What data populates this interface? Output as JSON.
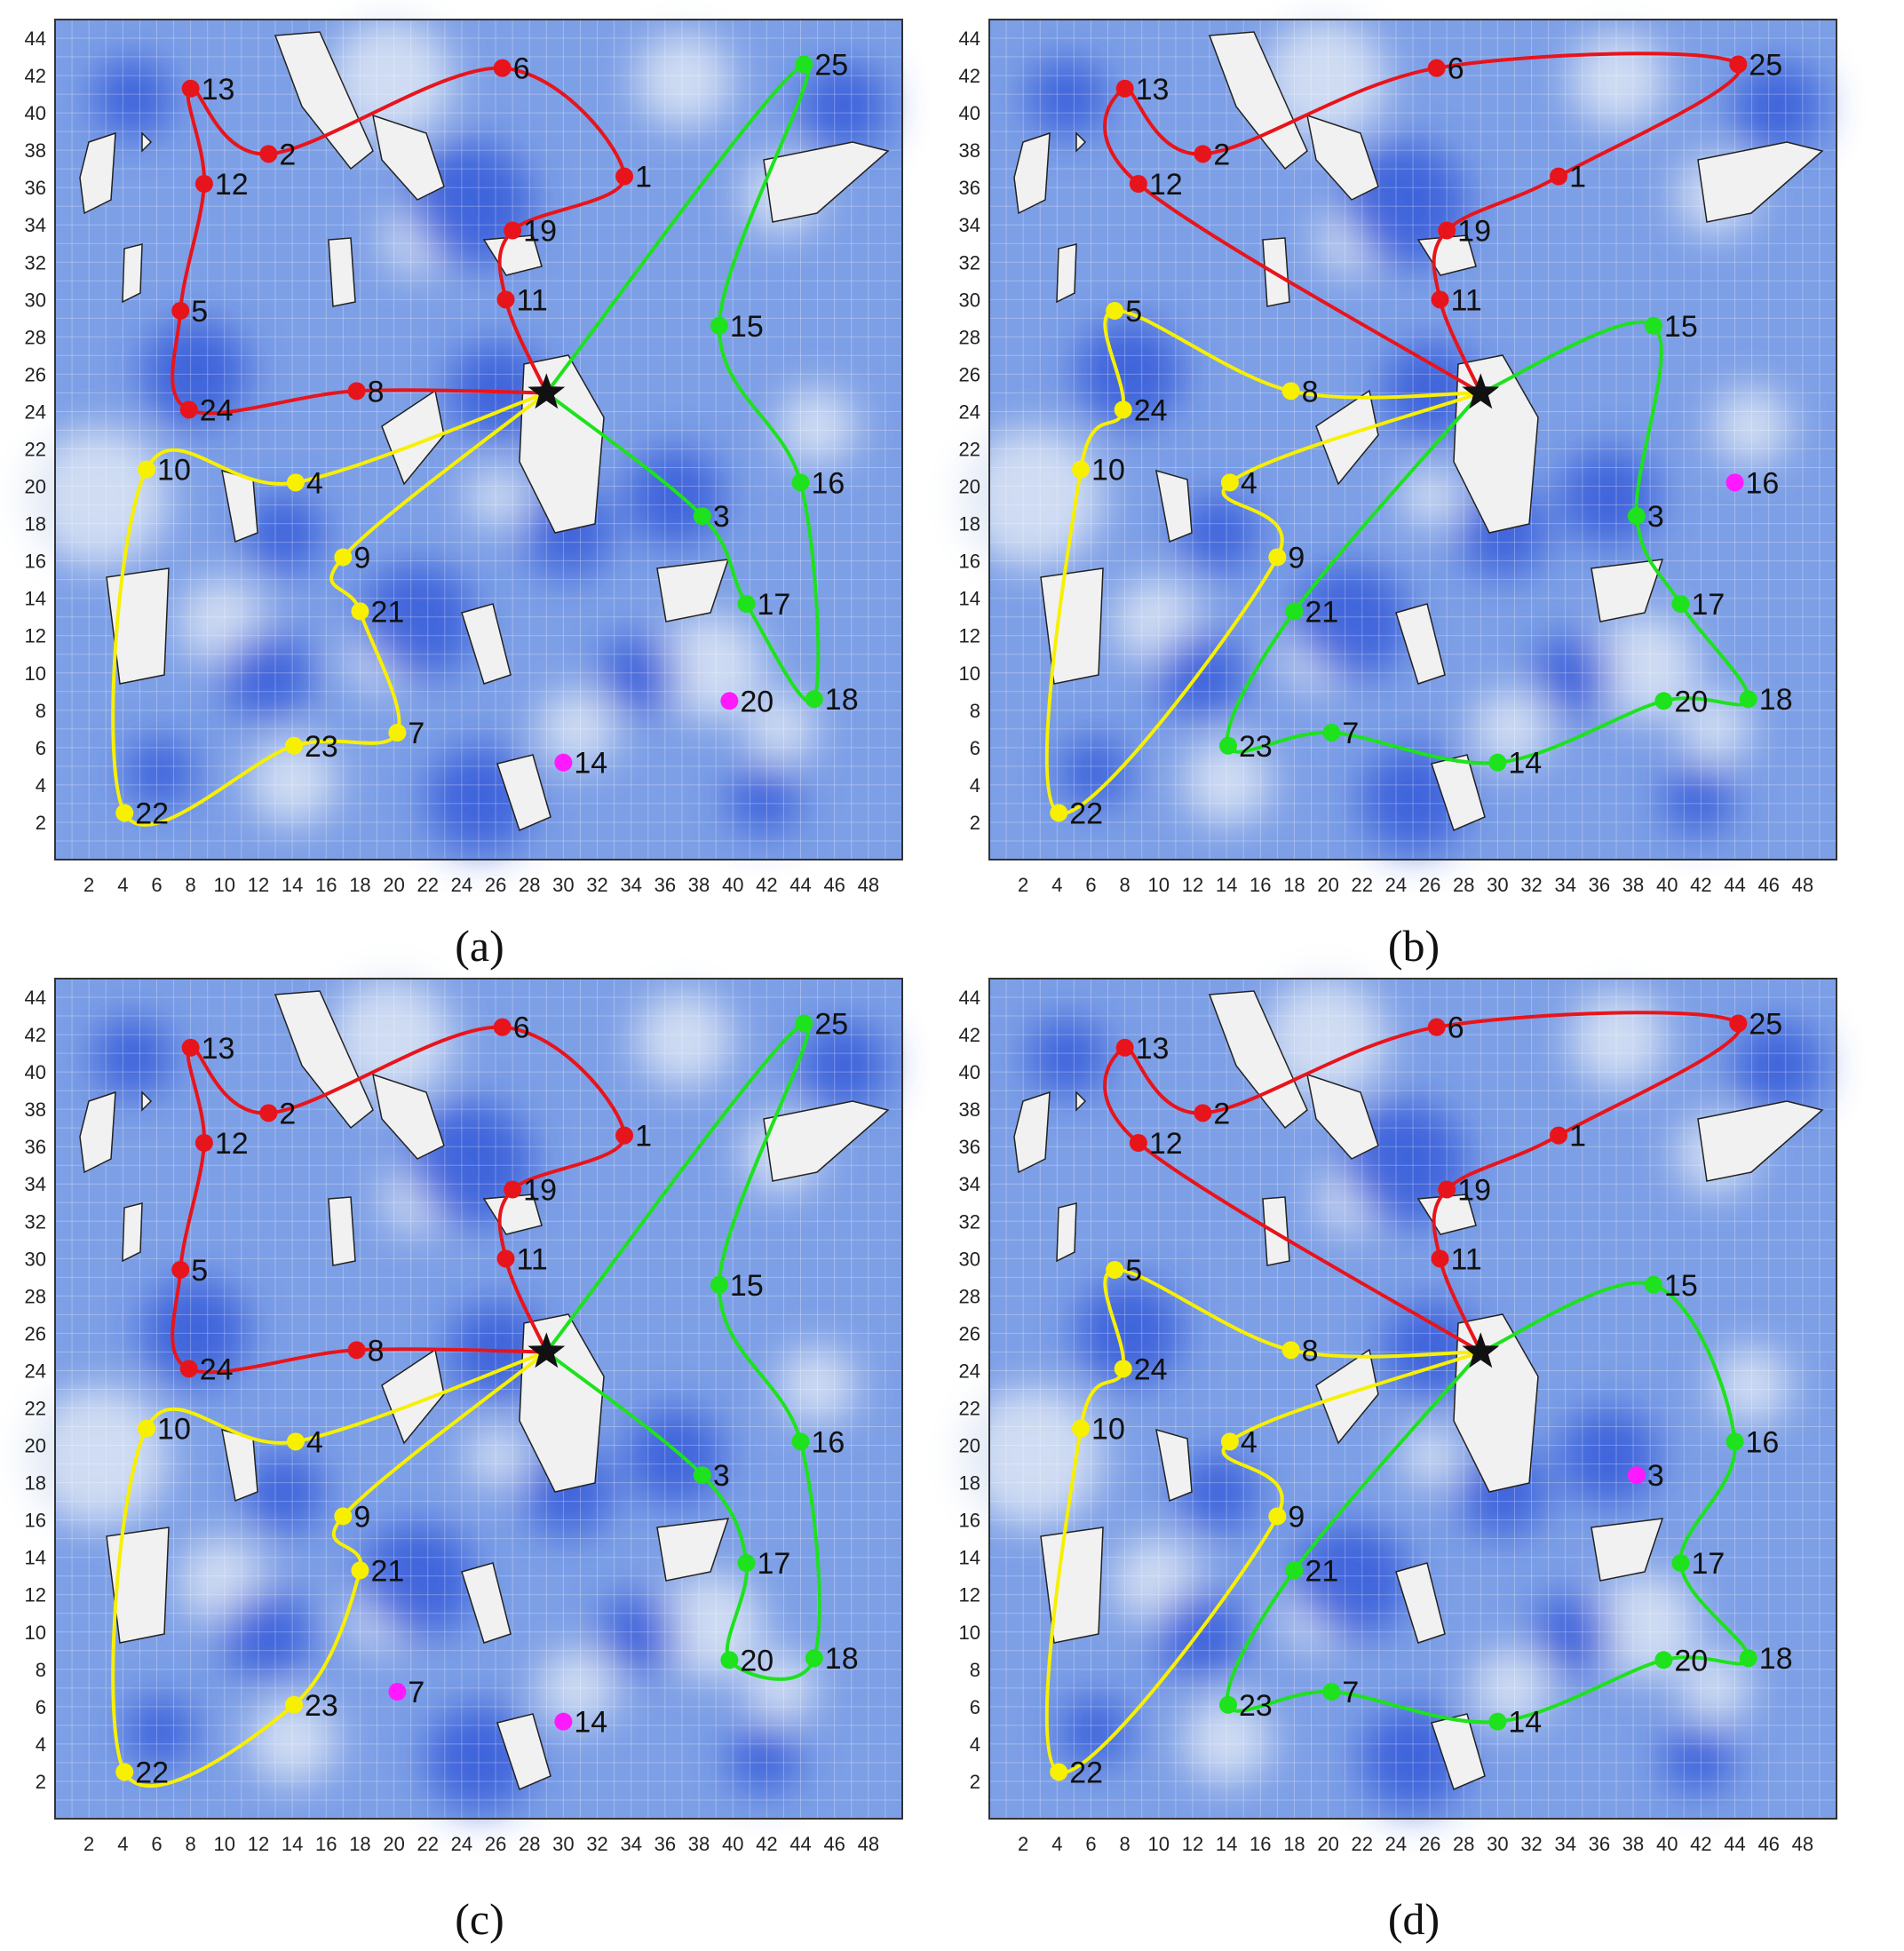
{
  "chart_data": [
    {
      "type": "scatter",
      "caption": "(a)",
      "xlim": [
        0,
        50
      ],
      "ylim": [
        0,
        45
      ],
      "xticks": [
        2,
        4,
        6,
        8,
        10,
        12,
        14,
        16,
        18,
        20,
        22,
        24,
        26,
        28,
        30,
        32,
        34,
        36,
        38,
        40,
        42,
        44,
        46,
        48
      ],
      "yticks": [
        2,
        4,
        6,
        8,
        10,
        12,
        14,
        16,
        18,
        20,
        22,
        24,
        26,
        28,
        30,
        32,
        34,
        36,
        38,
        40,
        42,
        44
      ],
      "depot": {
        "x": 29,
        "y": 25
      },
      "nodes": [
        {
          "id": "1",
          "x": 33.6,
          "y": 36.6,
          "color": "red"
        },
        {
          "id": "2",
          "x": 12.6,
          "y": 37.8,
          "color": "red"
        },
        {
          "id": "3",
          "x": 38.2,
          "y": 18.4,
          "color": "green"
        },
        {
          "id": "4",
          "x": 14.2,
          "y": 20.2,
          "color": "yellow"
        },
        {
          "id": "5",
          "x": 7.4,
          "y": 29.4,
          "color": "red"
        },
        {
          "id": "6",
          "x": 26.4,
          "y": 42.4,
          "color": "red"
        },
        {
          "id": "7",
          "x": 20.2,
          "y": 6.8,
          "color": "yellow"
        },
        {
          "id": "8",
          "x": 17.8,
          "y": 25.1,
          "color": "red"
        },
        {
          "id": "9",
          "x": 17.0,
          "y": 16.2,
          "color": "yellow"
        },
        {
          "id": "10",
          "x": 5.4,
          "y": 20.9,
          "color": "yellow"
        },
        {
          "id": "11",
          "x": 26.6,
          "y": 30.0,
          "color": "red"
        },
        {
          "id": "12",
          "x": 8.8,
          "y": 36.2,
          "color": "red"
        },
        {
          "id": "13",
          "x": 8.0,
          "y": 41.3,
          "color": "red"
        },
        {
          "id": "14",
          "x": 30.0,
          "y": 5.2,
          "color": "magenta"
        },
        {
          "id": "15",
          "x": 39.2,
          "y": 28.6,
          "color": "green"
        },
        {
          "id": "16",
          "x": 44.0,
          "y": 20.2,
          "color": "green"
        },
        {
          "id": "17",
          "x": 40.8,
          "y": 13.7,
          "color": "green"
        },
        {
          "id": "18",
          "x": 44.8,
          "y": 8.6,
          "color": "green"
        },
        {
          "id": "19",
          "x": 27.0,
          "y": 33.7,
          "color": "red"
        },
        {
          "id": "20",
          "x": 39.8,
          "y": 8.5,
          "color": "magenta"
        },
        {
          "id": "21",
          "x": 18.0,
          "y": 13.3,
          "color": "yellow"
        },
        {
          "id": "22",
          "x": 4.1,
          "y": 2.5,
          "color": "yellow"
        },
        {
          "id": "23",
          "x": 14.1,
          "y": 6.1,
          "color": "yellow"
        },
        {
          "id": "24",
          "x": 7.9,
          "y": 24.1,
          "color": "red"
        },
        {
          "id": "25",
          "x": 44.2,
          "y": 42.6,
          "color": "green"
        }
      ],
      "routes": [
        {
          "color": "red",
          "sequence": [
            "depot",
            "11",
            "19",
            "1",
            "6",
            "2",
            "13",
            "12",
            "5",
            "24",
            "8",
            "depot"
          ]
        },
        {
          "color": "yellow",
          "sequence": [
            "depot",
            "4",
            "10",
            "22",
            "23",
            "7",
            "21",
            "9",
            "depot"
          ]
        },
        {
          "color": "green",
          "sequence": [
            "depot",
            "3",
            "17",
            "18",
            "16",
            "15",
            "25",
            "depot"
          ]
        }
      ]
    },
    {
      "type": "scatter",
      "caption": "(b)",
      "xlim": [
        0,
        50
      ],
      "ylim": [
        0,
        45
      ],
      "xticks": [
        2,
        4,
        6,
        8,
        10,
        12,
        14,
        16,
        18,
        20,
        22,
        24,
        26,
        28,
        30,
        32,
        34,
        36,
        38,
        40,
        42,
        44,
        46,
        48
      ],
      "yticks": [
        2,
        4,
        6,
        8,
        10,
        12,
        14,
        16,
        18,
        20,
        22,
        24,
        26,
        28,
        30,
        32,
        34,
        36,
        38,
        40,
        42,
        44
      ],
      "depot": {
        "x": 29,
        "y": 25
      },
      "nodes": [
        {
          "id": "1",
          "x": 33.6,
          "y": 36.6,
          "color": "red"
        },
        {
          "id": "2",
          "x": 12.6,
          "y": 37.8,
          "color": "red"
        },
        {
          "id": "3",
          "x": 38.2,
          "y": 18.4,
          "color": "green"
        },
        {
          "id": "4",
          "x": 14.2,
          "y": 20.2,
          "color": "yellow"
        },
        {
          "id": "5",
          "x": 7.4,
          "y": 29.4,
          "color": "yellow"
        },
        {
          "id": "6",
          "x": 26.4,
          "y": 42.4,
          "color": "red"
        },
        {
          "id": "7",
          "x": 20.2,
          "y": 6.8,
          "color": "green"
        },
        {
          "id": "8",
          "x": 17.8,
          "y": 25.1,
          "color": "yellow"
        },
        {
          "id": "9",
          "x": 17.0,
          "y": 16.2,
          "color": "yellow"
        },
        {
          "id": "10",
          "x": 5.4,
          "y": 20.9,
          "color": "yellow"
        },
        {
          "id": "11",
          "x": 26.6,
          "y": 30.0,
          "color": "red"
        },
        {
          "id": "12",
          "x": 8.8,
          "y": 36.2,
          "color": "red"
        },
        {
          "id": "13",
          "x": 8.0,
          "y": 41.3,
          "color": "red"
        },
        {
          "id": "14",
          "x": 30.0,
          "y": 5.2,
          "color": "green"
        },
        {
          "id": "15",
          "x": 39.2,
          "y": 28.6,
          "color": "green"
        },
        {
          "id": "16",
          "x": 44.0,
          "y": 20.2,
          "color": "magenta"
        },
        {
          "id": "17",
          "x": 40.8,
          "y": 13.7,
          "color": "green"
        },
        {
          "id": "18",
          "x": 44.8,
          "y": 8.6,
          "color": "green"
        },
        {
          "id": "19",
          "x": 27.0,
          "y": 33.7,
          "color": "red"
        },
        {
          "id": "20",
          "x": 39.8,
          "y": 8.5,
          "color": "green"
        },
        {
          "id": "21",
          "x": 18.0,
          "y": 13.3,
          "color": "green"
        },
        {
          "id": "22",
          "x": 4.1,
          "y": 2.5,
          "color": "yellow"
        },
        {
          "id": "23",
          "x": 14.1,
          "y": 6.1,
          "color": "green"
        },
        {
          "id": "24",
          "x": 7.9,
          "y": 24.1,
          "color": "yellow"
        },
        {
          "id": "25",
          "x": 44.2,
          "y": 42.6,
          "color": "red"
        }
      ],
      "routes": [
        {
          "color": "red",
          "sequence": [
            "depot",
            "11",
            "19",
            "1",
            "25",
            "6",
            "2",
            "13",
            "12",
            "depot"
          ]
        },
        {
          "color": "yellow",
          "sequence": [
            "depot",
            "8",
            "5",
            "24",
            "10",
            "22",
            "9",
            "4",
            "depot"
          ]
        },
        {
          "color": "green",
          "sequence": [
            "depot",
            "15",
            "3",
            "17",
            "18",
            "20",
            "14",
            "7",
            "23",
            "21",
            "depot"
          ]
        }
      ]
    },
    {
      "type": "scatter",
      "caption": "(c)",
      "xlim": [
        0,
        50
      ],
      "ylim": [
        0,
        45
      ],
      "xticks": [
        2,
        4,
        6,
        8,
        10,
        12,
        14,
        16,
        18,
        20,
        22,
        24,
        26,
        28,
        30,
        32,
        34,
        36,
        38,
        40,
        42,
        44,
        46,
        48
      ],
      "yticks": [
        2,
        4,
        6,
        8,
        10,
        12,
        14,
        16,
        18,
        20,
        22,
        24,
        26,
        28,
        30,
        32,
        34,
        36,
        38,
        40,
        42,
        44
      ],
      "depot": {
        "x": 29,
        "y": 25
      },
      "nodes": [
        {
          "id": "1",
          "x": 33.6,
          "y": 36.6,
          "color": "red"
        },
        {
          "id": "2",
          "x": 12.6,
          "y": 37.8,
          "color": "red"
        },
        {
          "id": "3",
          "x": 38.2,
          "y": 18.4,
          "color": "green"
        },
        {
          "id": "4",
          "x": 14.2,
          "y": 20.2,
          "color": "yellow"
        },
        {
          "id": "5",
          "x": 7.4,
          "y": 29.4,
          "color": "red"
        },
        {
          "id": "6",
          "x": 26.4,
          "y": 42.4,
          "color": "red"
        },
        {
          "id": "7",
          "x": 20.2,
          "y": 6.8,
          "color": "magenta"
        },
        {
          "id": "8",
          "x": 17.8,
          "y": 25.1,
          "color": "red"
        },
        {
          "id": "9",
          "x": 17.0,
          "y": 16.2,
          "color": "yellow"
        },
        {
          "id": "10",
          "x": 5.4,
          "y": 20.9,
          "color": "yellow"
        },
        {
          "id": "11",
          "x": 26.6,
          "y": 30.0,
          "color": "red"
        },
        {
          "id": "12",
          "x": 8.8,
          "y": 36.2,
          "color": "red"
        },
        {
          "id": "13",
          "x": 8.0,
          "y": 41.3,
          "color": "red"
        },
        {
          "id": "14",
          "x": 30.0,
          "y": 5.2,
          "color": "magenta"
        },
        {
          "id": "15",
          "x": 39.2,
          "y": 28.6,
          "color": "green"
        },
        {
          "id": "16",
          "x": 44.0,
          "y": 20.2,
          "color": "green"
        },
        {
          "id": "17",
          "x": 40.8,
          "y": 13.7,
          "color": "green"
        },
        {
          "id": "18",
          "x": 44.8,
          "y": 8.6,
          "color": "green"
        },
        {
          "id": "19",
          "x": 27.0,
          "y": 33.7,
          "color": "red"
        },
        {
          "id": "20",
          "x": 39.8,
          "y": 8.5,
          "color": "green"
        },
        {
          "id": "21",
          "x": 18.0,
          "y": 13.3,
          "color": "yellow"
        },
        {
          "id": "22",
          "x": 4.1,
          "y": 2.5,
          "color": "yellow"
        },
        {
          "id": "23",
          "x": 14.1,
          "y": 6.1,
          "color": "yellow"
        },
        {
          "id": "24",
          "x": 7.9,
          "y": 24.1,
          "color": "red"
        },
        {
          "id": "25",
          "x": 44.2,
          "y": 42.6,
          "color": "green"
        }
      ],
      "routes": [
        {
          "color": "red",
          "sequence": [
            "depot",
            "11",
            "19",
            "1",
            "6",
            "2",
            "13",
            "12",
            "5",
            "24",
            "8",
            "depot"
          ]
        },
        {
          "color": "yellow",
          "sequence": [
            "depot",
            "4",
            "10",
            "22",
            "23",
            "21",
            "9",
            "depot"
          ]
        },
        {
          "color": "green",
          "sequence": [
            "depot",
            "3",
            "17",
            "20",
            "18",
            "16",
            "15",
            "25",
            "depot"
          ]
        }
      ]
    },
    {
      "type": "scatter",
      "caption": "(d)",
      "xlim": [
        0,
        50
      ],
      "ylim": [
        0,
        45
      ],
      "xticks": [
        2,
        4,
        6,
        8,
        10,
        12,
        14,
        16,
        18,
        20,
        22,
        24,
        26,
        28,
        30,
        32,
        34,
        36,
        38,
        40,
        42,
        44,
        46,
        48
      ],
      "yticks": [
        2,
        4,
        6,
        8,
        10,
        12,
        14,
        16,
        18,
        20,
        22,
        24,
        26,
        28,
        30,
        32,
        34,
        36,
        38,
        40,
        42,
        44
      ],
      "depot": {
        "x": 29,
        "y": 25
      },
      "nodes": [
        {
          "id": "1",
          "x": 33.6,
          "y": 36.6,
          "color": "red"
        },
        {
          "id": "2",
          "x": 12.6,
          "y": 37.8,
          "color": "red"
        },
        {
          "id": "3",
          "x": 38.2,
          "y": 18.4,
          "color": "magenta"
        },
        {
          "id": "4",
          "x": 14.2,
          "y": 20.2,
          "color": "yellow"
        },
        {
          "id": "5",
          "x": 7.4,
          "y": 29.4,
          "color": "yellow"
        },
        {
          "id": "6",
          "x": 26.4,
          "y": 42.4,
          "color": "red"
        },
        {
          "id": "7",
          "x": 20.2,
          "y": 6.8,
          "color": "green"
        },
        {
          "id": "8",
          "x": 17.8,
          "y": 25.1,
          "color": "yellow"
        },
        {
          "id": "9",
          "x": 17.0,
          "y": 16.2,
          "color": "yellow"
        },
        {
          "id": "10",
          "x": 5.4,
          "y": 20.9,
          "color": "yellow"
        },
        {
          "id": "11",
          "x": 26.6,
          "y": 30.0,
          "color": "red"
        },
        {
          "id": "12",
          "x": 8.8,
          "y": 36.2,
          "color": "red"
        },
        {
          "id": "13",
          "x": 8.0,
          "y": 41.3,
          "color": "red"
        },
        {
          "id": "14",
          "x": 30.0,
          "y": 5.2,
          "color": "green"
        },
        {
          "id": "15",
          "x": 39.2,
          "y": 28.6,
          "color": "green"
        },
        {
          "id": "16",
          "x": 44.0,
          "y": 20.2,
          "color": "green"
        },
        {
          "id": "17",
          "x": 40.8,
          "y": 13.7,
          "color": "green"
        },
        {
          "id": "18",
          "x": 44.8,
          "y": 8.6,
          "color": "green"
        },
        {
          "id": "19",
          "x": 27.0,
          "y": 33.7,
          "color": "red"
        },
        {
          "id": "20",
          "x": 39.8,
          "y": 8.5,
          "color": "green"
        },
        {
          "id": "21",
          "x": 18.0,
          "y": 13.3,
          "color": "green"
        },
        {
          "id": "22",
          "x": 4.1,
          "y": 2.5,
          "color": "yellow"
        },
        {
          "id": "23",
          "x": 14.1,
          "y": 6.1,
          "color": "green"
        },
        {
          "id": "24",
          "x": 7.9,
          "y": 24.1,
          "color": "yellow"
        },
        {
          "id": "25",
          "x": 44.2,
          "y": 42.6,
          "color": "red"
        }
      ],
      "routes": [
        {
          "color": "red",
          "sequence": [
            "depot",
            "11",
            "19",
            "1",
            "25",
            "6",
            "2",
            "13",
            "12",
            "depot"
          ]
        },
        {
          "color": "yellow",
          "sequence": [
            "depot",
            "8",
            "5",
            "24",
            "10",
            "22",
            "9",
            "4",
            "depot"
          ]
        },
        {
          "color": "green",
          "sequence": [
            "depot",
            "15",
            "16",
            "17",
            "18",
            "20",
            "14",
            "7",
            "23",
            "21",
            "depot"
          ]
        }
      ]
    }
  ],
  "colors": {
    "red": "#e8141b",
    "yellow": "#f7f000",
    "green": "#1de21d",
    "magenta": "#ff19ff",
    "sea_light": "#dde6f5",
    "sea_mid": "#7d9fe6",
    "sea_dark": "#2f55d8",
    "land": "#f1f1f1",
    "depot": "#111111"
  },
  "icons": {
    "depot": "star-icon"
  }
}
